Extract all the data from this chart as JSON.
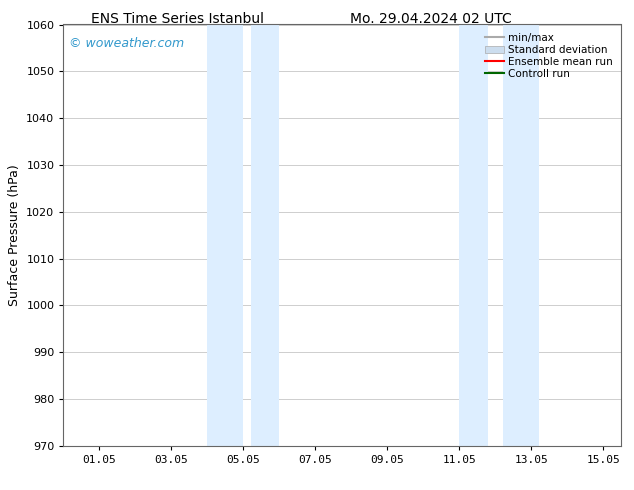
{
  "title_left": "ENS Time Series Istanbul",
  "title_right": "Mo. 29.04.2024 02 UTC",
  "ylabel": "Surface Pressure (hPa)",
  "ylim": [
    970,
    1060
  ],
  "yticks": [
    970,
    980,
    990,
    1000,
    1010,
    1020,
    1030,
    1040,
    1050,
    1060
  ],
  "xlim_start": 0.0,
  "xlim_end": 15.5,
  "xtick_labels": [
    "01.05",
    "03.05",
    "05.05",
    "07.05",
    "09.05",
    "11.05",
    "13.05",
    "15.05"
  ],
  "xtick_positions": [
    1,
    3,
    5,
    7,
    9,
    11,
    13,
    15
  ],
  "shaded_bands": [
    {
      "x_start": 4.0,
      "x_end": 5.0,
      "color": "#ddeeff"
    },
    {
      "x_start": 5.2,
      "x_end": 6.0,
      "color": "#ddeeff"
    },
    {
      "x_start": 11.0,
      "x_end": 11.8,
      "color": "#ddeeff"
    },
    {
      "x_start": 12.2,
      "x_end": 13.2,
      "color": "#ddeeff"
    }
  ],
  "watermark_text": "© woweather.com",
  "watermark_color": "#3399cc",
  "background_color": "#ffffff",
  "grid_color": "#bbbbbb",
  "legend_entries": [
    {
      "label": "min/max",
      "color": "#aaaaaa",
      "lw": 1.5
    },
    {
      "label": "Standard deviation",
      "color": "#ccddee",
      "lw": 8
    },
    {
      "label": "Ensemble mean run",
      "color": "#ff0000",
      "lw": 1.5
    },
    {
      "label": "Controll run",
      "color": "#006600",
      "lw": 1.5
    }
  ],
  "title_fontsize": 10,
  "tick_fontsize": 8,
  "ylabel_fontsize": 9,
  "watermark_fontsize": 9,
  "legend_fontsize": 7.5
}
